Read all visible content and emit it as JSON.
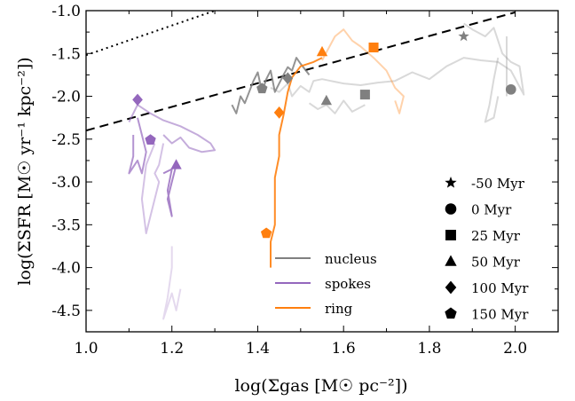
{
  "chart_data": {
    "type": "line",
    "xlabel": "log(Σgas [M☉ pc⁻²])",
    "ylabel": "log(ΣSFR [M☉ yr⁻¹ kpc⁻²])",
    "xlim": [
      1.0,
      2.1
    ],
    "ylim": [
      -4.75,
      -1.0
    ],
    "xticks": [
      "1.0",
      "1.2",
      "1.4",
      "1.6",
      "1.8",
      "2.0"
    ],
    "yticks": [
      "-1.0",
      "-1.5",
      "-2.0",
      "-2.5",
      "-3.0",
      "-3.5",
      "-4.0",
      "-4.5"
    ],
    "grid": false,
    "reference_lines": [
      {
        "style": "dotted",
        "points": [
          [
            1.0,
            -1.52
          ],
          [
            1.3,
            -1.0
          ]
        ]
      },
      {
        "style": "dashed",
        "points": [
          [
            1.0,
            -2.4
          ],
          [
            2.0,
            -1.02
          ]
        ]
      }
    ],
    "series": [
      {
        "name": "nucleus",
        "color": "#808080",
        "segments": [
          {
            "alpha": 0.3,
            "points": [
              [
                1.88,
                -1.15
              ],
              [
                1.9,
                -1.22
              ],
              [
                1.93,
                -1.3
              ],
              [
                1.95,
                -1.2
              ],
              [
                1.96,
                -1.35
              ],
              [
                1.97,
                -1.5
              ],
              [
                1.99,
                -1.6
              ],
              [
                2.01,
                -1.65
              ],
              [
                2.02,
                -1.98
              ],
              [
                1.99,
                -1.7
              ],
              [
                1.96,
                -1.6
              ],
              [
                1.92,
                -1.58
              ],
              [
                1.88,
                -1.55
              ],
              [
                1.84,
                -1.65
              ],
              [
                1.8,
                -1.8
              ],
              [
                1.76,
                -1.72
              ],
              [
                1.72,
                -1.82
              ],
              [
                1.68,
                -1.84
              ],
              [
                1.64,
                -1.87
              ],
              [
                1.6,
                -1.85
              ],
              [
                1.57,
                -1.82
              ],
              [
                1.55,
                -1.8
              ],
              [
                1.53,
                -1.82
              ],
              [
                1.52,
                -1.95
              ],
              [
                1.5,
                -1.88
              ],
              [
                1.48,
                -2.0
              ],
              [
                1.47,
                -1.85
              ],
              [
                1.45,
                -1.95
              ],
              [
                1.43,
                -1.9
              ]
            ]
          },
          {
            "alpha": 0.3,
            "points": [
              [
                1.96,
                -1.55
              ],
              [
                1.95,
                -1.8
              ],
              [
                1.94,
                -2.1
              ],
              [
                1.93,
                -2.3
              ],
              [
                1.95,
                -2.25
              ],
              [
                1.96,
                -2.0
              ]
            ]
          },
          {
            "alpha": 0.3,
            "points": [
              [
                1.98,
                -1.3
              ],
              [
                1.98,
                -1.7
              ],
              [
                1.98,
                -2.0
              ]
            ]
          },
          {
            "alpha": 0.3,
            "points": [
              [
                1.52,
                -2.08
              ],
              [
                1.54,
                -2.15
              ],
              [
                1.56,
                -2.1
              ],
              [
                1.58,
                -2.2
              ],
              [
                1.6,
                -2.05
              ],
              [
                1.62,
                -2.18
              ],
              [
                1.65,
                -2.1
              ]
            ]
          },
          {
            "alpha": 0.85,
            "points": [
              [
                1.34,
                -2.1
              ],
              [
                1.35,
                -2.2
              ],
              [
                1.36,
                -2.0
              ],
              [
                1.37,
                -2.08
              ],
              [
                1.38,
                -1.95
              ],
              [
                1.39,
                -1.82
              ],
              [
                1.4,
                -1.72
              ],
              [
                1.41,
                -1.95
              ],
              [
                1.42,
                -1.8
              ],
              [
                1.43,
                -1.7
              ],
              [
                1.44,
                -1.95
              ],
              [
                1.45,
                -1.85
              ],
              [
                1.46,
                -1.75
              ],
              [
                1.47,
                -1.66
              ],
              [
                1.48,
                -1.7
              ],
              [
                1.49,
                -1.55
              ],
              [
                1.5,
                -1.62
              ],
              [
                1.52,
                -1.75
              ]
            ]
          }
        ],
        "markers": [
          {
            "label": "-50 Myr",
            "x": 1.88,
            "y": -1.3
          },
          {
            "label": "0 Myr",
            "x": 1.99,
            "y": -1.92
          },
          {
            "label": "25 Myr",
            "x": 1.65,
            "y": -1.98
          },
          {
            "label": "50 Myr",
            "x": 1.56,
            "y": -2.05
          },
          {
            "label": "100 Myr",
            "x": 1.47,
            "y": -1.79
          },
          {
            "label": "150 Myr",
            "x": 1.41,
            "y": -1.91
          }
        ]
      },
      {
        "name": "spokes",
        "color": "#9467bd",
        "segments": [
          {
            "alpha": 0.25,
            "points": [
              [
                1.2,
                -3.75
              ],
              [
                1.2,
                -4.0
              ],
              [
                1.19,
                -4.35
              ],
              [
                1.18,
                -4.6
              ],
              [
                1.2,
                -4.3
              ],
              [
                1.21,
                -4.5
              ],
              [
                1.22,
                -4.25
              ]
            ]
          },
          {
            "alpha": 0.4,
            "points": [
              [
                1.18,
                -2.55
              ],
              [
                1.17,
                -2.8
              ],
              [
                1.16,
                -2.9
              ],
              [
                1.17,
                -3.0
              ],
              [
                1.15,
                -3.4
              ],
              [
                1.14,
                -3.6
              ],
              [
                1.13,
                -3.2
              ],
              [
                1.14,
                -2.8
              ],
              [
                1.16,
                -2.55
              ]
            ]
          },
          {
            "alpha": 0.55,
            "points": [
              [
                1.1,
                -2.3
              ],
              [
                1.12,
                -2.1
              ],
              [
                1.15,
                -2.2
              ],
              [
                1.18,
                -2.28
              ],
              [
                1.22,
                -2.35
              ],
              [
                1.26,
                -2.45
              ],
              [
                1.29,
                -2.55
              ],
              [
                1.3,
                -2.63
              ],
              [
                1.27,
                -2.65
              ],
              [
                1.24,
                -2.6
              ],
              [
                1.22,
                -2.48
              ],
              [
                1.2,
                -2.55
              ],
              [
                1.18,
                -2.45
              ]
            ]
          },
          {
            "alpha": 0.7,
            "points": [
              [
                1.11,
                -2.45
              ],
              [
                1.11,
                -2.7
              ],
              [
                1.1,
                -2.9
              ],
              [
                1.12,
                -2.75
              ],
              [
                1.13,
                -2.9
              ],
              [
                1.14,
                -2.65
              ],
              [
                1.13,
                -2.45
              ],
              [
                1.12,
                -2.25
              ]
            ]
          },
          {
            "alpha": 0.8,
            "points": [
              [
                1.21,
                -2.8
              ],
              [
                1.2,
                -3.0
              ],
              [
                1.19,
                -3.2
              ],
              [
                1.2,
                -3.4
              ],
              [
                1.19,
                -3.1
              ],
              [
                1.2,
                -2.85
              ],
              [
                1.18,
                -2.9
              ]
            ]
          }
        ],
        "markers": [
          {
            "label": "100 Myr",
            "x": 1.12,
            "y": -2.04
          },
          {
            "label": "150 Myr",
            "x": 1.15,
            "y": -2.51
          },
          {
            "label": "50 Myr",
            "x": 1.21,
            "y": -2.8
          }
        ]
      },
      {
        "name": "ring",
        "color": "#ff7f0e",
        "segments": [
          {
            "alpha": 0.35,
            "points": [
              [
                1.55,
                -1.58
              ],
              [
                1.58,
                -1.3
              ],
              [
                1.6,
                -1.22
              ],
              [
                1.62,
                -1.35
              ],
              [
                1.64,
                -1.42
              ],
              [
                1.67,
                -1.55
              ],
              [
                1.7,
                -1.7
              ],
              [
                1.72,
                -1.9
              ],
              [
                1.74,
                -2.0
              ],
              [
                1.73,
                -2.2
              ],
              [
                1.72,
                -2.05
              ]
            ]
          },
          {
            "alpha": 0.9,
            "points": [
              [
                1.43,
                -4.0
              ],
              [
                1.43,
                -3.7
              ],
              [
                1.44,
                -3.5
              ],
              [
                1.44,
                -3.2
              ],
              [
                1.44,
                -2.95
              ],
              [
                1.45,
                -2.7
              ],
              [
                1.45,
                -2.45
              ],
              [
                1.46,
                -2.22
              ],
              [
                1.47,
                -1.95
              ],
              [
                1.48,
                -1.78
              ],
              [
                1.5,
                -1.65
              ],
              [
                1.53,
                -1.6
              ],
              [
                1.55,
                -1.55
              ]
            ]
          }
        ],
        "markers": [
          {
            "label": "25 Myr",
            "x": 1.67,
            "y": -1.43
          },
          {
            "label": "50 Myr",
            "x": 1.55,
            "y": -1.48
          },
          {
            "label": "100 Myr",
            "x": 1.45,
            "y": -2.19
          },
          {
            "label": "150 Myr",
            "x": 1.42,
            "y": -3.6
          }
        ]
      }
    ],
    "legend_lines": {
      "position": "bottom-center",
      "entries": [
        {
          "label": "nucleus",
          "color": "#808080"
        },
        {
          "label": "spokes",
          "color": "#9467bd"
        },
        {
          "label": "ring",
          "color": "#ff7f0e"
        }
      ]
    },
    "legend_markers": {
      "position": "bottom-right",
      "entries": [
        {
          "label": "-50 Myr",
          "marker": "star"
        },
        {
          "label": "0 Myr",
          "marker": "circle"
        },
        {
          "label": "25 Myr",
          "marker": "square"
        },
        {
          "label": "50 Myr",
          "marker": "triangle"
        },
        {
          "label": "100 Myr",
          "marker": "diamond"
        },
        {
          "label": "150 Myr",
          "marker": "pentagon"
        }
      ]
    }
  }
}
